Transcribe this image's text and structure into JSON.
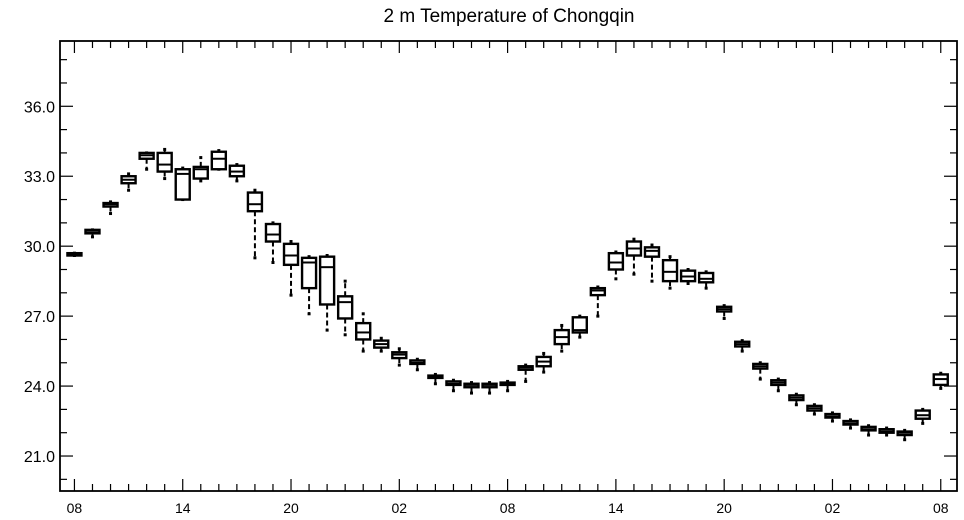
{
  "chart_data": {
    "type": "box",
    "title": "2 m Temperature of Chongqin",
    "xlabel": "",
    "ylabel": "",
    "y_ticks": [
      "21.0",
      "24.0",
      "27.0",
      "30.0",
      "33.0",
      "36.0"
    ],
    "y_tick_values": [
      21,
      24,
      27,
      30,
      33,
      36
    ],
    "ylim": [
      19.5,
      38.8
    ],
    "x_ticks": [
      "08",
      "14",
      "20",
      "02",
      "08",
      "14",
      "20",
      "02",
      "08"
    ],
    "x_tick_hours": [
      0,
      6,
      12,
      18,
      24,
      30,
      36,
      42,
      48
    ],
    "xlim": [
      -0.8,
      48.9
    ],
    "colors": {
      "line": "#000000",
      "background": "#ffffff"
    },
    "boxes": [
      {
        "hour": 0,
        "min": 29.6,
        "q1": 29.6,
        "median": 29.6,
        "q3": 29.7,
        "max": 29.7
      },
      {
        "hour": 1,
        "min": 30.4,
        "q1": 30.55,
        "median": 30.6,
        "q3": 30.7,
        "max": 30.7
      },
      {
        "hour": 2,
        "min": 31.4,
        "q1": 31.7,
        "median": 31.8,
        "q3": 31.85,
        "max": 31.9
      },
      {
        "hour": 3,
        "min": 32.4,
        "q1": 32.7,
        "median": 32.85,
        "q3": 33.0,
        "max": 33.1
      },
      {
        "hour": 4,
        "min": 33.3,
        "q1": 33.75,
        "median": 33.9,
        "q3": 34.0,
        "max": 34.0
      },
      {
        "hour": 5,
        "min": 32.9,
        "q1": 33.2,
        "median": 33.5,
        "q3": 34.0,
        "max": 34.15
      },
      {
        "hour": 6,
        "min": 32.0,
        "q1": 32.0,
        "median": 33.1,
        "q3": 33.3,
        "max": 33.35
      },
      {
        "hour": 7,
        "min": 32.8,
        "q1": 32.9,
        "median": 33.3,
        "q3": 33.4,
        "max": 33.8
      },
      {
        "hour": 8,
        "min": 33.3,
        "q1": 33.3,
        "median": 33.75,
        "q3": 34.05,
        "max": 34.1
      },
      {
        "hour": 9,
        "min": 32.8,
        "q1": 33.0,
        "median": 33.2,
        "q3": 33.45,
        "max": 33.5
      },
      {
        "hour": 10,
        "min": 29.5,
        "q1": 31.5,
        "median": 31.8,
        "q3": 32.3,
        "max": 32.4
      },
      {
        "hour": 11,
        "min": 29.3,
        "q1": 30.2,
        "median": 30.5,
        "q3": 30.95,
        "max": 31.0
      },
      {
        "hour": 12,
        "min": 27.9,
        "q1": 29.2,
        "median": 29.6,
        "q3": 30.1,
        "max": 30.2
      },
      {
        "hour": 13,
        "min": 27.1,
        "q1": 28.2,
        "median": 29.3,
        "q3": 29.5,
        "max": 29.55
      },
      {
        "hour": 14,
        "min": 26.4,
        "q1": 27.5,
        "median": 29.1,
        "q3": 29.55,
        "max": 29.6
      },
      {
        "hour": 15,
        "min": 26.2,
        "q1": 26.9,
        "median": 27.6,
        "q3": 27.85,
        "max": 28.5
      },
      {
        "hour": 16,
        "min": 25.5,
        "q1": 26.0,
        "median": 26.3,
        "q3": 26.7,
        "max": 27.1
      },
      {
        "hour": 17,
        "min": 25.5,
        "q1": 25.65,
        "median": 25.8,
        "q3": 25.95,
        "max": 26.05
      },
      {
        "hour": 18,
        "min": 24.9,
        "q1": 25.2,
        "median": 25.35,
        "q3": 25.45,
        "max": 25.6
      },
      {
        "hour": 19,
        "min": 24.7,
        "q1": 24.95,
        "median": 25.0,
        "q3": 25.1,
        "max": 25.15
      },
      {
        "hour": 20,
        "min": 24.1,
        "q1": 24.35,
        "median": 24.4,
        "q3": 24.45,
        "max": 24.5
      },
      {
        "hour": 21,
        "min": 23.8,
        "q1": 24.05,
        "median": 24.1,
        "q3": 24.2,
        "max": 24.25
      },
      {
        "hour": 22,
        "min": 23.7,
        "q1": 23.95,
        "median": 24.05,
        "q3": 24.1,
        "max": 24.15
      },
      {
        "hour": 23,
        "min": 23.7,
        "q1": 23.95,
        "median": 24.05,
        "q3": 24.1,
        "max": 24.15
      },
      {
        "hour": 24,
        "min": 23.8,
        "q1": 24.05,
        "median": 24.1,
        "q3": 24.15,
        "max": 24.2
      },
      {
        "hour": 25,
        "min": 24.2,
        "q1": 24.7,
        "median": 24.8,
        "q3": 24.85,
        "max": 24.9
      },
      {
        "hour": 26,
        "min": 24.6,
        "q1": 24.85,
        "median": 25.05,
        "q3": 25.25,
        "max": 25.4
      },
      {
        "hour": 27,
        "min": 25.5,
        "q1": 25.8,
        "median": 26.1,
        "q3": 26.4,
        "max": 26.6
      },
      {
        "hour": 28,
        "min": 26.1,
        "q1": 26.3,
        "median": 26.4,
        "q3": 26.95,
        "max": 27.0
      },
      {
        "hour": 29,
        "min": 27.0,
        "q1": 27.9,
        "median": 28.1,
        "q3": 28.2,
        "max": 28.25
      },
      {
        "hour": 30,
        "min": 28.6,
        "q1": 29.0,
        "median": 29.3,
        "q3": 29.7,
        "max": 29.75
      },
      {
        "hour": 31,
        "min": 28.8,
        "q1": 29.6,
        "median": 29.9,
        "q3": 30.2,
        "max": 30.3
      },
      {
        "hour": 32,
        "min": 28.5,
        "q1": 29.55,
        "median": 29.8,
        "q3": 29.95,
        "max": 30.05
      },
      {
        "hour": 33,
        "min": 28.2,
        "q1": 28.5,
        "median": 28.9,
        "q3": 29.4,
        "max": 29.55
      },
      {
        "hour": 34,
        "min": 28.4,
        "q1": 28.5,
        "median": 28.7,
        "q3": 28.95,
        "max": 29.0
      },
      {
        "hour": 35,
        "min": 28.2,
        "q1": 28.45,
        "median": 28.6,
        "q3": 28.85,
        "max": 28.9
      },
      {
        "hour": 36,
        "min": 26.9,
        "q1": 27.2,
        "median": 27.3,
        "q3": 27.4,
        "max": 27.45
      },
      {
        "hour": 37,
        "min": 25.5,
        "q1": 25.7,
        "median": 25.8,
        "q3": 25.9,
        "max": 25.95
      },
      {
        "hour": 38,
        "min": 24.3,
        "q1": 24.75,
        "median": 24.85,
        "q3": 24.95,
        "max": 25.0
      },
      {
        "hour": 39,
        "min": 23.8,
        "q1": 24.05,
        "median": 24.15,
        "q3": 24.25,
        "max": 24.3
      },
      {
        "hour": 40,
        "min": 23.2,
        "q1": 23.4,
        "median": 23.5,
        "q3": 23.6,
        "max": 23.65
      },
      {
        "hour": 41,
        "min": 22.8,
        "q1": 22.95,
        "median": 23.05,
        "q3": 23.15,
        "max": 23.2
      },
      {
        "hour": 42,
        "min": 22.5,
        "q1": 22.65,
        "median": 22.7,
        "q3": 22.8,
        "max": 22.85
      },
      {
        "hour": 43,
        "min": 22.2,
        "q1": 22.35,
        "median": 22.4,
        "q3": 22.5,
        "max": 22.55
      },
      {
        "hour": 44,
        "min": 21.9,
        "q1": 22.1,
        "median": 22.15,
        "q3": 22.25,
        "max": 22.3
      },
      {
        "hour": 45,
        "min": 21.9,
        "q1": 22.0,
        "median": 22.05,
        "q3": 22.15,
        "max": 22.2
      },
      {
        "hour": 46,
        "min": 21.7,
        "q1": 21.9,
        "median": 22.0,
        "q3": 22.05,
        "max": 22.1
      },
      {
        "hour": 47,
        "min": 22.4,
        "q1": 22.6,
        "median": 22.75,
        "q3": 22.95,
        "max": 23.0
      },
      {
        "hour": 48,
        "min": 23.9,
        "q1": 24.05,
        "median": 24.3,
        "q3": 24.5,
        "max": 24.55
      }
    ]
  }
}
